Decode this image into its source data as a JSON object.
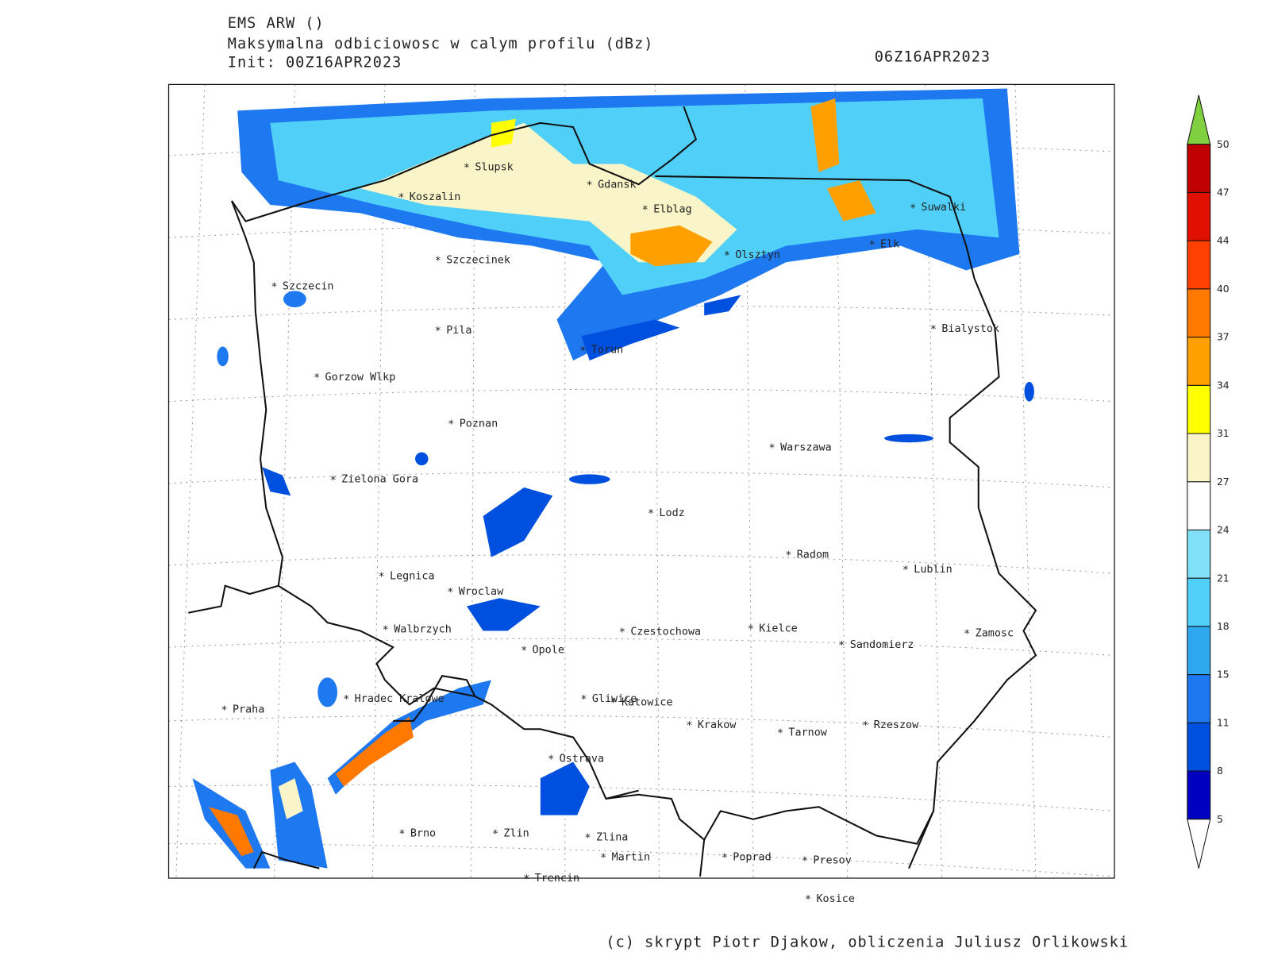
{
  "header": {
    "model": "EMS ARW ()",
    "field": "Maksymalna odbiciowosc w calym profilu (dBz)",
    "init": "Init: 00Z16APR2023",
    "valid": "06Z16APR2023"
  },
  "cities": [
    "Slupsk",
    "Koszalin",
    "Gdansk",
    "Elblag",
    "Suwalki",
    "Elk",
    "Olsztyn",
    "Szczecinek",
    "Szczecin",
    "Pila",
    "Torun",
    "Bialystok",
    "Gorzow Wlkp",
    "Poznan",
    "Warszawa",
    "Zielona Gora",
    "Lodz",
    "Radom",
    "Lublin",
    "Legnica",
    "Wroclaw",
    "Walbrzych",
    "Czestochowa",
    "Kielce",
    "Zamosc",
    "Opole",
    "Sandomierz",
    "Praha",
    "Hradec Kralowe",
    "Gliwice",
    "Katowice",
    "Krakow",
    "Tarnow",
    "Rzeszow",
    "Ostrava",
    "Brno",
    "Zlin",
    "Zlina",
    "Martin",
    "Poprad",
    "Presov",
    "Trencin",
    "Kosice"
  ],
  "colorbar": {
    "levels": [
      5,
      8,
      11,
      15,
      18,
      21,
      24,
      27,
      31,
      34,
      37,
      40,
      44,
      47,
      50
    ],
    "colors": [
      "#0000c0",
      "#0050e0",
      "#1e78f0",
      "#30a8f0",
      "#50d0f8",
      "#80e0f8",
      "#ffffff",
      "#faf5c8",
      "#ffff00",
      "#ffa000",
      "#ff7800",
      "#ff4000",
      "#e01000",
      "#c00000"
    ],
    "over_color": "#80d040",
    "under_color": "#ffffff"
  },
  "footer": "(c) skrypt Piotr Djakow, obliczenia Juliusz Orlikowski"
}
